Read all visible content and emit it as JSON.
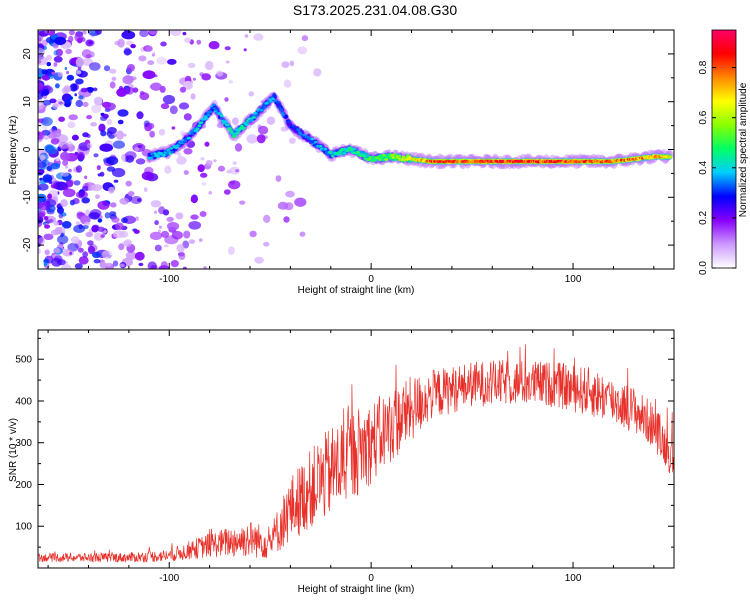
{
  "figure_title": "S173.2025.231.04.08.G30",
  "chart_data": [
    {
      "type": "heatmap",
      "name": "spectrogram",
      "xlabel": "Height of straight line (km)",
      "ylabel": "Frequency (Hz)",
      "xlim": [
        -165,
        150
      ],
      "ylim": [
        -25,
        25
      ],
      "xticks": [
        -100,
        0,
        100
      ],
      "yticks": [
        -20,
        -10,
        0,
        10,
        20
      ],
      "colorbar": {
        "label": "Normalized spectral amplitude",
        "range": [
          0.0,
          0.95
        ],
        "ticks": [
          0.0,
          0.2,
          0.4,
          0.6,
          0.8
        ],
        "colors": [
          "#ffffff",
          "#cc99ff",
          "#8800ff",
          "#0000ff",
          "#00ccff",
          "#00ff66",
          "#88ff00",
          "#ffff00",
          "#ff8800",
          "#ff0000",
          "#ff0066"
        ]
      },
      "ridge": {
        "description": "dominant frequency track (km, Hz, amplitude)",
        "points": [
          [
            -110,
            -1.5,
            0.35
          ],
          [
            -100,
            -0.5,
            0.4
          ],
          [
            -92,
            2,
            0.35
          ],
          [
            -85,
            5,
            0.4
          ],
          [
            -78,
            9,
            0.35
          ],
          [
            -68,
            3,
            0.45
          ],
          [
            -58,
            7,
            0.4
          ],
          [
            -48,
            11,
            0.35
          ],
          [
            -40,
            5,
            0.3
          ],
          [
            -30,
            2,
            0.35
          ],
          [
            -20,
            -1,
            0.4
          ],
          [
            -10,
            0,
            0.45
          ],
          [
            0,
            -2,
            0.5
          ],
          [
            10,
            -1.5,
            0.55
          ],
          [
            20,
            -2,
            0.65
          ],
          [
            30,
            -2.5,
            0.8
          ],
          [
            60,
            -2.5,
            0.85
          ],
          [
            90,
            -2.5,
            0.85
          ],
          [
            120,
            -2.5,
            0.8
          ],
          [
            140,
            -1.5,
            0.75
          ],
          [
            148,
            -1.5,
            0.7
          ]
        ]
      }
    },
    {
      "type": "line",
      "name": "snr",
      "xlabel": "Height of straight line (km)",
      "ylabel": "SNR (10 * v/v)",
      "xlim": [
        -165,
        150
      ],
      "ylim": [
        0,
        570
      ],
      "xticks": [
        -100,
        0,
        100
      ],
      "yticks": [
        100,
        200,
        300,
        400,
        500
      ],
      "line_color": "#e8302a",
      "envelope": {
        "description": "mean SNR level and noise spread vs height (km, mean, spread)",
        "points": [
          [
            -165,
            25,
            10
          ],
          [
            -120,
            25,
            12
          ],
          [
            -100,
            30,
            15
          ],
          [
            -80,
            55,
            30
          ],
          [
            -60,
            70,
            45
          ],
          [
            -50,
            60,
            40
          ],
          [
            -40,
            140,
            80
          ],
          [
            -30,
            190,
            95
          ],
          [
            -20,
            230,
            110
          ],
          [
            -10,
            270,
            110
          ],
          [
            0,
            300,
            100
          ],
          [
            10,
            340,
            90
          ],
          [
            20,
            380,
            80
          ],
          [
            30,
            415,
            60
          ],
          [
            50,
            440,
            55
          ],
          [
            70,
            445,
            55
          ],
          [
            90,
            440,
            55
          ],
          [
            110,
            420,
            60
          ],
          [
            130,
            380,
            55
          ],
          [
            140,
            340,
            55
          ],
          [
            150,
            260,
            50
          ]
        ]
      }
    }
  ]
}
